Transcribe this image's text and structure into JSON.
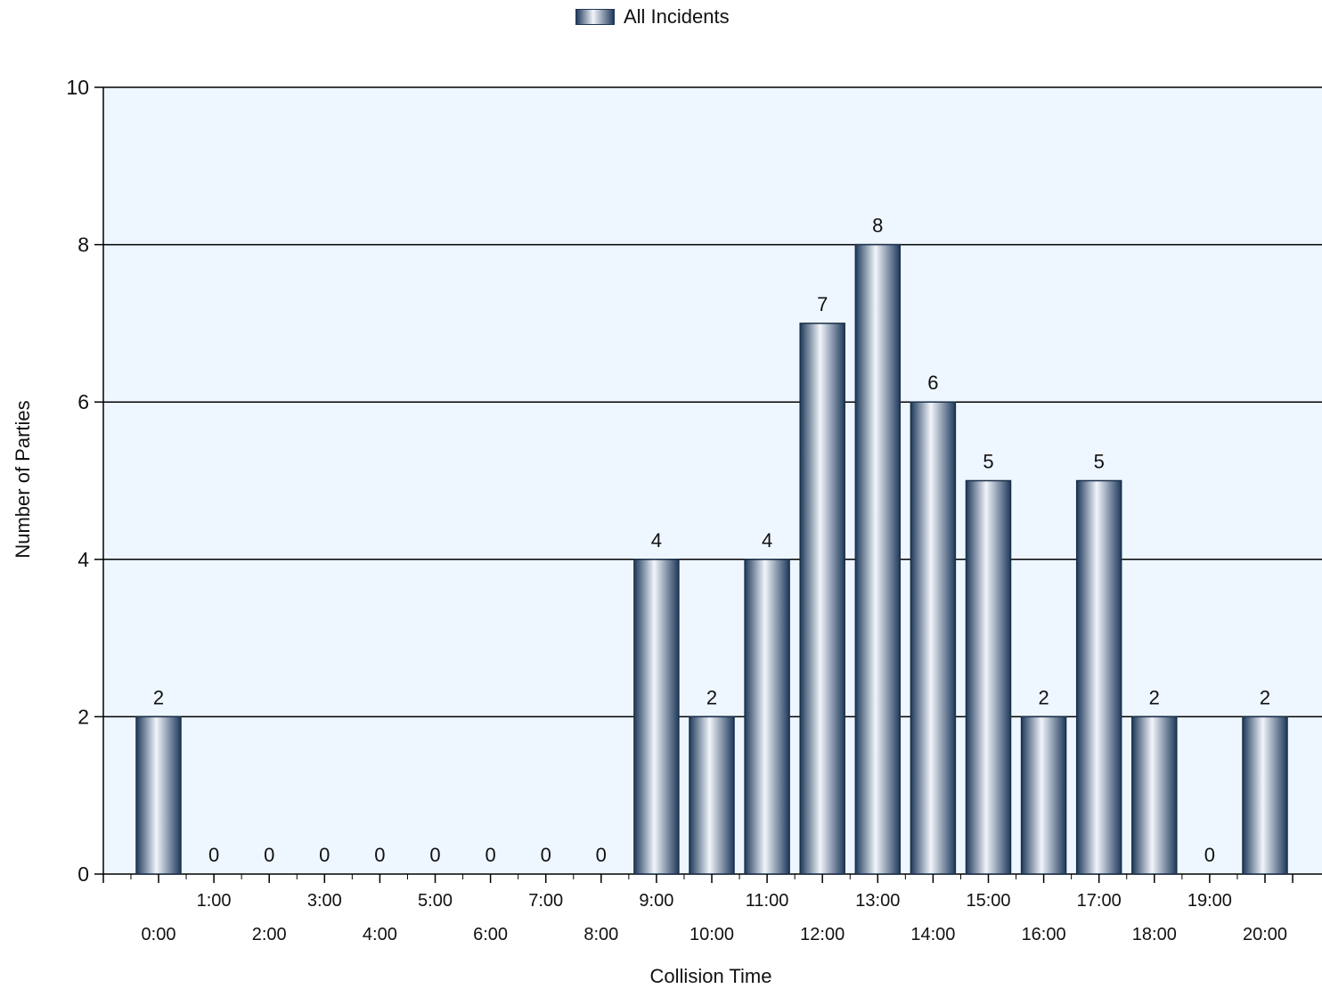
{
  "chart_data": {
    "type": "bar",
    "categories": [
      "0:00",
      "1:00",
      "2:00",
      "3:00",
      "4:00",
      "5:00",
      "6:00",
      "7:00",
      "8:00",
      "9:00",
      "10:00",
      "11:00",
      "12:00",
      "13:00",
      "14:00",
      "15:00",
      "16:00",
      "17:00",
      "18:00",
      "19:00",
      "20:00"
    ],
    "series": [
      {
        "name": "All Incidents",
        "values": [
          2,
          0,
          0,
          0,
          0,
          0,
          0,
          0,
          0,
          4,
          2,
          4,
          7,
          8,
          6,
          5,
          2,
          5,
          2,
          0,
          2
        ]
      }
    ],
    "title": "",
    "xlabel": "Collision Time",
    "ylabel": "Number of Parties",
    "ylim": [
      0,
      10
    ],
    "yticks": [
      0,
      2,
      4,
      6,
      8,
      10
    ],
    "grid": true,
    "legend_position": "top-center",
    "data_labels": true,
    "colors": {
      "plot_background": "#eef6ff",
      "bar_dark": "#1f3a5c",
      "bar_light": "#f2f5fb",
      "gridline": "#000000"
    }
  }
}
